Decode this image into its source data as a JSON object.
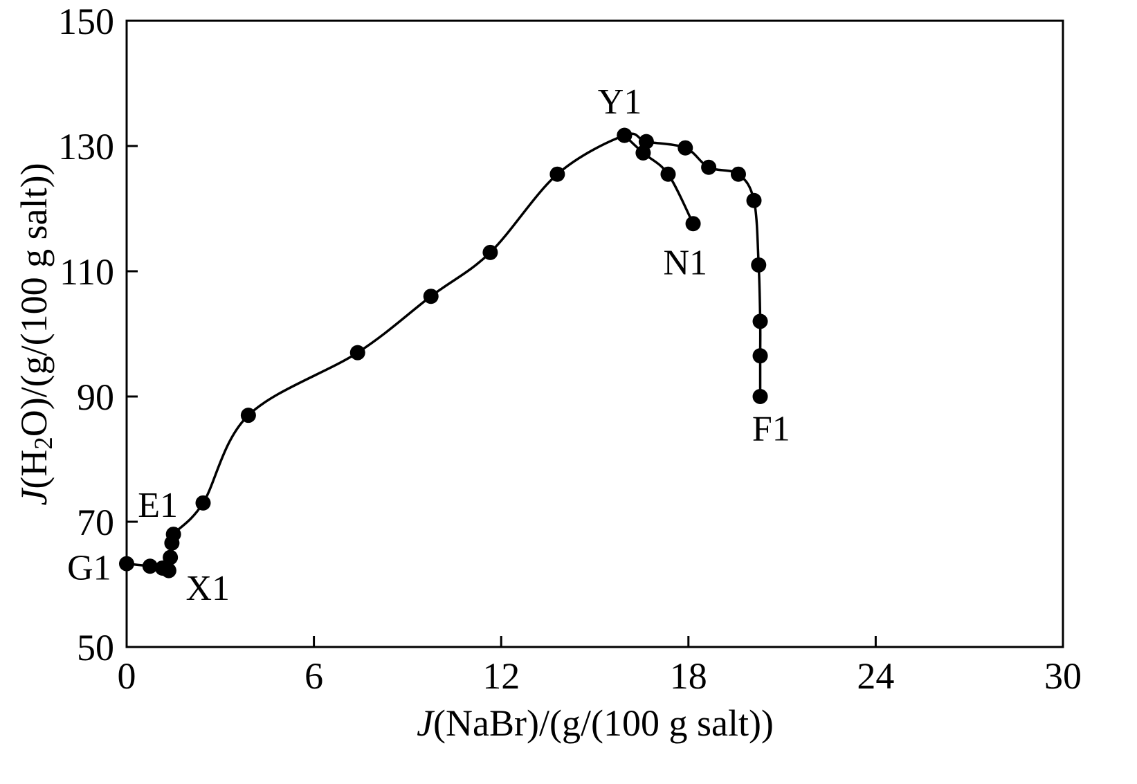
{
  "figure": {
    "background": "#ffffff",
    "ink": "#000000"
  },
  "chart_data": {
    "type": "line",
    "title": "",
    "xlabel_parts": {
      "italic": "J",
      "rest": "(NaBr)/(g/(100 g salt))"
    },
    "ylabel_parts": {
      "italic": "J",
      "pre": "(H",
      "sub": "2",
      "rest": "O)/(g/(100 g salt))"
    },
    "xlim": [
      0,
      30
    ],
    "ylim": [
      50,
      150
    ],
    "xticks": [
      0,
      6,
      12,
      18,
      24,
      30
    ],
    "yticks": [
      50,
      70,
      90,
      110,
      130,
      150
    ],
    "grid": false,
    "frame": true,
    "legend": "none",
    "marker": "filled-circle",
    "series": [
      {
        "name": "main-curve-G1-to-F1",
        "points": [
          [
            0.0,
            63.3
          ],
          [
            0.75,
            62.9
          ],
          [
            1.15,
            62.6
          ],
          [
            1.35,
            62.2
          ],
          [
            1.4,
            64.3
          ],
          [
            1.45,
            66.6
          ],
          [
            1.5,
            68.0
          ],
          [
            2.45,
            73.0
          ],
          [
            3.9,
            87.0
          ],
          [
            7.4,
            97.0
          ],
          [
            9.75,
            106.0
          ],
          [
            11.65,
            113.0
          ],
          [
            13.8,
            125.5
          ],
          [
            15.95,
            131.7
          ],
          [
            16.65,
            130.7
          ],
          [
            17.9,
            129.7
          ],
          [
            18.65,
            126.6
          ],
          [
            19.6,
            125.5
          ],
          [
            20.1,
            121.3
          ],
          [
            20.25,
            111.0
          ],
          [
            20.3,
            102.0
          ],
          [
            20.3,
            96.5
          ],
          [
            20.3,
            90.0
          ]
        ]
      },
      {
        "name": "branch-Y1-to-N1",
        "points": [
          [
            15.95,
            131.7
          ],
          [
            16.55,
            128.9
          ],
          [
            17.35,
            125.5
          ],
          [
            18.15,
            117.6
          ]
        ]
      }
    ],
    "annotations": [
      {
        "text": "G1",
        "x": -1.2,
        "y": 62.8
      },
      {
        "text": "E1",
        "x": 1.0,
        "y": 72.8
      },
      {
        "text": "X1",
        "x": 2.6,
        "y": 59.5
      },
      {
        "text": "Y1",
        "x": 15.8,
        "y": 137.2
      },
      {
        "text": "N1",
        "x": 17.9,
        "y": 111.5
      },
      {
        "text": "F1",
        "x": 20.65,
        "y": 85.0
      }
    ]
  }
}
